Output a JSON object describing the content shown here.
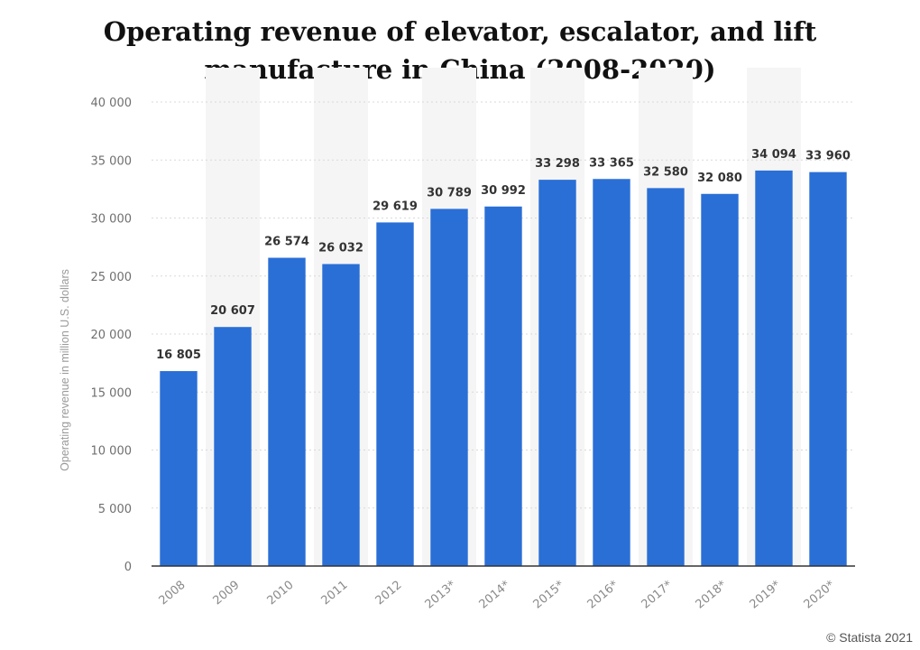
{
  "title": "Operating revenue of elevator, escalator, and lift manufacture in China (2008-2020)",
  "credit": "© Statista 2021",
  "chart_data": {
    "type": "bar",
    "title": "Operating revenue of elevator, escalator, and lift manufacture in China (2008-2020)",
    "xlabel": "",
    "ylabel": "Operating revenue in million U.S. dollars",
    "categories": [
      "2008",
      "2009",
      "2010",
      "2011",
      "2012",
      "2013*",
      "2014*",
      "2015*",
      "2016*",
      "2017*",
      "2018*",
      "2019*",
      "2020*"
    ],
    "values": [
      16805,
      20607,
      26574,
      26032,
      29619,
      30789,
      30992,
      33298,
      33365,
      32580,
      32080,
      34094,
      33960
    ],
    "value_labels": [
      "16 805",
      "20 607",
      "26 574",
      "26 032",
      "29 619",
      "30 789",
      "30 992",
      "33 298",
      "33 365",
      "32 580",
      "32 080",
      "34 094",
      "33 960"
    ],
    "ylim": [
      0,
      40000
    ],
    "yticks": [
      0,
      5000,
      10000,
      15000,
      20000,
      25000,
      30000,
      35000,
      40000
    ],
    "ytick_labels": [
      "0",
      "5 000",
      "10 000",
      "15 000",
      "20 000",
      "25 000",
      "30 000",
      "35 000",
      "40 000"
    ],
    "grid": true,
    "bar_color": "#2a6fd6"
  }
}
